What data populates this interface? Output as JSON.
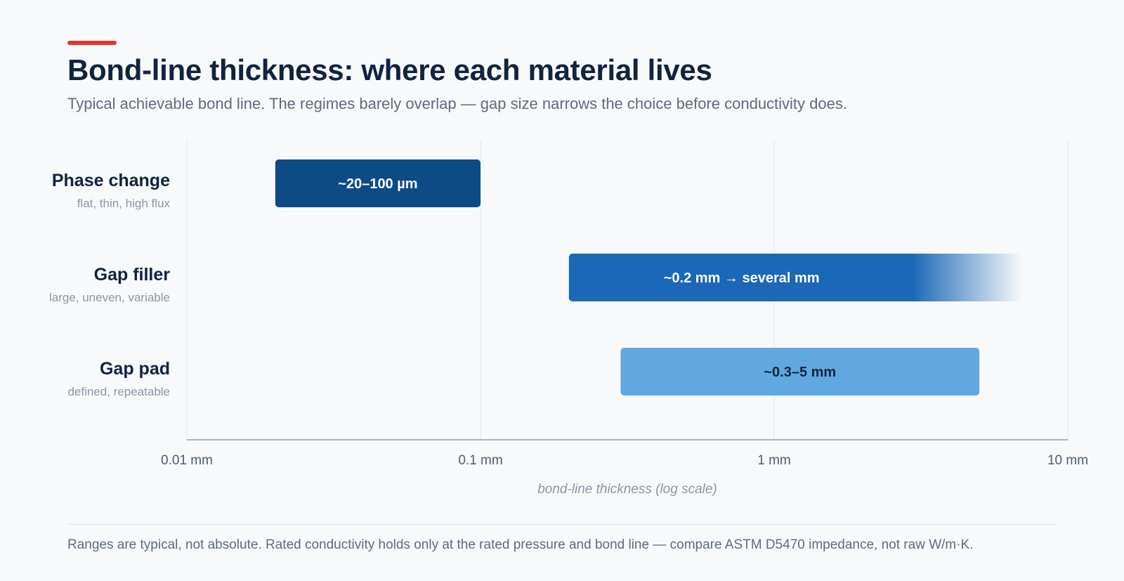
{
  "header": {
    "title": "Bond-line thickness: where each material lives",
    "subtitle": "Typical achievable bond line. The regimes barely overlap — gap size narrows the choice before conductivity does."
  },
  "footer": {
    "note": "Ranges are typical, not absolute. Rated conductivity holds only at the rated pressure and bond line — compare ASTM D5470 impedance, not raw W/m·K."
  },
  "colors": {
    "accent": "#d63b2f",
    "title": "#10233f",
    "phase_change": "#0e4a86",
    "gap_filler": "#1a68b6",
    "gap_pad": "#62a8e0",
    "axis": "#a7b4c4",
    "grid": "#e2e6eb"
  },
  "chart_data": {
    "type": "range-bar",
    "x_scale": "log",
    "x_unit": "mm",
    "xlim": [
      0.01,
      10
    ],
    "xlabel": "bond-line thickness (log scale)",
    "ticks": [
      {
        "value": 0.01,
        "label": "0.01 mm"
      },
      {
        "value": 0.1,
        "label": "0.1 mm"
      },
      {
        "value": 1,
        "label": "1 mm"
      },
      {
        "value": 10,
        "label": "10 mm"
      }
    ],
    "grid": true,
    "series": [
      {
        "name": "Phase change",
        "description": "flat, thin, high flux",
        "start": 0.02,
        "end": 0.1,
        "label": "~20–100 µm",
        "color": "#0e4a86",
        "label_color": "#ffffff"
      },
      {
        "name": "Gap filler",
        "description": "large, uneven, variable",
        "start": 0.2,
        "end": 3,
        "fade_end": 7,
        "label": "~0.2 mm → several mm",
        "color": "#1a68b6",
        "label_color": "#ffffff"
      },
      {
        "name": "Gap pad",
        "description": "defined, repeatable",
        "start": 0.3,
        "end": 5,
        "label": "~0.3–5 mm",
        "color": "#62a8e0",
        "label_color": "#10233f"
      }
    ]
  }
}
